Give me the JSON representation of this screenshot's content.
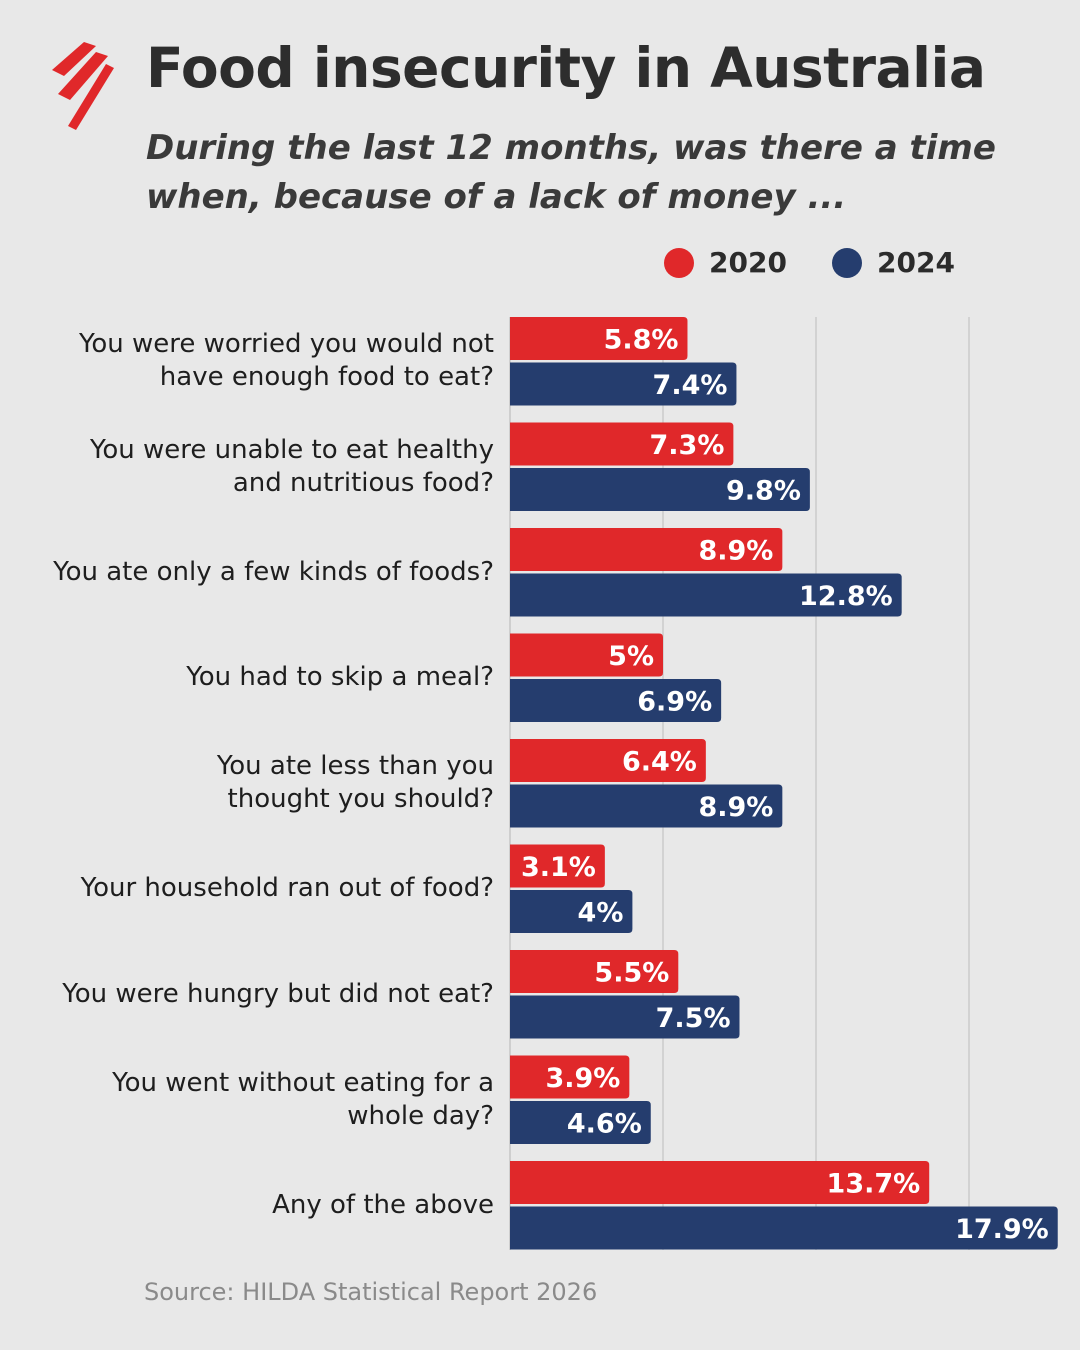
{
  "header": {
    "title": "Food insecurity in Australia",
    "subtitle": "During the last 12 months, was there a time when, because of a lack of money ..."
  },
  "colors": {
    "accent": "#e0282a",
    "series_2020": "#e0282a",
    "series_2024": "#253d6e",
    "background": "#e8e8e8",
    "grid": "#c4c4c4"
  },
  "logo": {
    "icon": "sbs-logo-icon"
  },
  "source": "Source: HILDA Statistical Report 2026",
  "chart_data": {
    "type": "bar",
    "orientation": "horizontal",
    "categories": [
      "You were worried you would not have enough food to eat?",
      "You were unable to eat healthy and nutritious food?",
      "You ate only a few kinds of foods?",
      "You had to skip a meal?",
      "You ate less than you thought you should?",
      "Your household ran out of food?",
      "You were hungry but did not eat?",
      "You went without eating for a whole day?",
      "Any of the above"
    ],
    "series": [
      {
        "name": "2020",
        "color": "#e0282a",
        "values": [
          5.8,
          7.3,
          8.9,
          5,
          6.4,
          3.1,
          5.5,
          3.9,
          13.7
        ],
        "labels": [
          "5.8%",
          "7.3%",
          "8.9%",
          "5%",
          "6.4%",
          "3.1%",
          "5.5%",
          "3.9%",
          "13.7%"
        ]
      },
      {
        "name": "2024",
        "color": "#253d6e",
        "values": [
          7.4,
          9.8,
          12.8,
          6.9,
          8.9,
          4,
          7.5,
          4.6,
          17.9
        ],
        "labels": [
          "7.4%",
          "9.8%",
          "12.8%",
          "6.9%",
          "8.9%",
          "4%",
          "7.5%",
          "4.6%",
          "17.9%"
        ]
      }
    ],
    "xlim": [
      0,
      18
    ],
    "gridlines": [
      5,
      10,
      15
    ],
    "grid": true,
    "legend": "top-right"
  }
}
